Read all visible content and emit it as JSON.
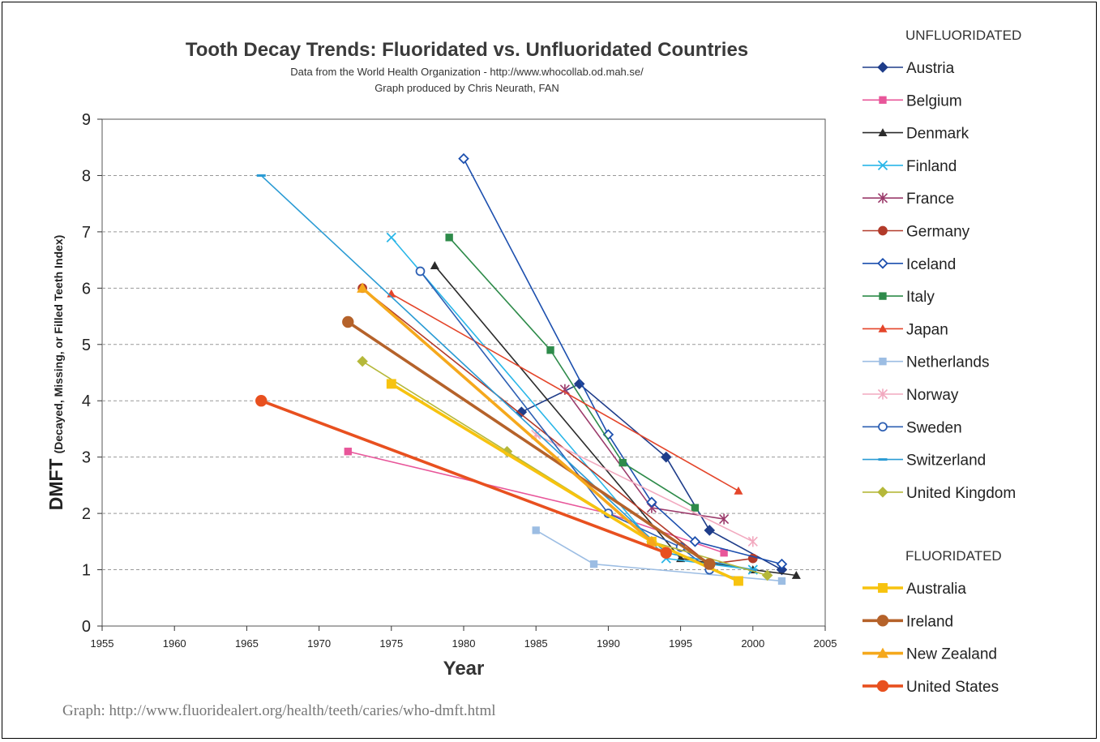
{
  "chart_data": {
    "type": "line",
    "title": "Tooth Decay Trends:  Fluoridated vs. Unfluoridated Countries",
    "subtitle_lines": [
      "Data from the World Health Organization - http://www.whocollab.od.mah.se/",
      "Graph produced by Chris Neurath, FAN"
    ],
    "xlabel": "Year",
    "ylabel_main": "DMFT",
    "ylabel_sub": "(Decayed, Missing, or Filled Teeth Index)",
    "xlim": [
      1955,
      2005
    ],
    "ylim": [
      0,
      9
    ],
    "x_ticks": [
      "1955",
      "1960",
      "1965",
      "1970",
      "1975",
      "1980",
      "1985",
      "1990",
      "1995",
      "2000",
      "2005"
    ],
    "y_ticks": [
      "0",
      "1",
      "2",
      "3",
      "4",
      "5",
      "6",
      "7",
      "8",
      "9"
    ],
    "grid": "horizontal dashed",
    "legend_position": "right",
    "legend_groups": [
      {
        "heading": "UNFLUORIDATED",
        "series_start": 0,
        "series_end": 14
      },
      {
        "heading": "FLUORIDATED",
        "series_start": 14,
        "series_end": 18
      }
    ],
    "series": [
      {
        "name": "Austria",
        "group": "unfluoridated",
        "color": "#1f3d8a",
        "marker": "diamond",
        "points": [
          [
            1984,
            3.8
          ],
          [
            1988,
            4.3
          ],
          [
            1994,
            3.0
          ],
          [
            1997,
            1.7
          ],
          [
            2002,
            1.0
          ]
        ]
      },
      {
        "name": "Belgium",
        "group": "unfluoridated",
        "color": "#e8569a",
        "marker": "square",
        "points": [
          [
            1972,
            3.1
          ],
          [
            1990,
            2.0
          ],
          [
            1998,
            1.3
          ]
        ]
      },
      {
        "name": "Denmark",
        "group": "unfluoridated",
        "color": "#2b2b2b",
        "marker": "triangle",
        "points": [
          [
            1978,
            6.4
          ],
          [
            1995,
            1.2
          ],
          [
            2000,
            1.0
          ],
          [
            2003,
            0.9
          ]
        ]
      },
      {
        "name": "Finland",
        "group": "unfluoridated",
        "color": "#29b6e8",
        "marker": "x",
        "points": [
          [
            1975,
            6.9
          ],
          [
            1994,
            1.2
          ],
          [
            2000,
            1.0
          ]
        ]
      },
      {
        "name": "France",
        "group": "unfluoridated",
        "color": "#9b3b6b",
        "marker": "star",
        "points": [
          [
            1987,
            4.2
          ],
          [
            1993,
            2.1
          ],
          [
            1998,
            1.9
          ]
        ]
      },
      {
        "name": "Germany",
        "group": "unfluoridated",
        "color": "#b23a2a",
        "marker": "circle",
        "points": [
          [
            1973,
            6.0
          ],
          [
            1997,
            1.1
          ],
          [
            2000,
            1.2
          ]
        ]
      },
      {
        "name": "Iceland",
        "group": "unfluoridated",
        "color": "#1c4fae",
        "marker": "diamond-open",
        "points": [
          [
            1980,
            8.3
          ],
          [
            1990,
            3.4
          ],
          [
            1993,
            2.2
          ],
          [
            1996,
            1.5
          ],
          [
            2002,
            1.1
          ]
        ]
      },
      {
        "name": "Italy",
        "group": "unfluoridated",
        "color": "#2e8b4a",
        "marker": "square",
        "points": [
          [
            1979,
            6.9
          ],
          [
            1986,
            4.9
          ],
          [
            1991,
            2.9
          ],
          [
            1996,
            2.1
          ]
        ]
      },
      {
        "name": "Japan",
        "group": "unfluoridated",
        "color": "#e4452a",
        "marker": "triangle",
        "points": [
          [
            1975,
            5.9
          ],
          [
            1999,
            2.4
          ]
        ]
      },
      {
        "name": "Netherlands",
        "group": "unfluoridated",
        "color": "#9cbde3",
        "marker": "square",
        "points": [
          [
            1985,
            1.7
          ],
          [
            1989,
            1.1
          ],
          [
            2002,
            0.8
          ]
        ]
      },
      {
        "name": "Norway",
        "group": "unfluoridated",
        "color": "#f2a9bf",
        "marker": "star",
        "points": [
          [
            1985,
            3.4
          ],
          [
            2000,
            1.5
          ]
        ]
      },
      {
        "name": "Sweden",
        "group": "unfluoridated",
        "color": "#2d5fb3",
        "marker": "circle-open",
        "points": [
          [
            1977,
            6.3
          ],
          [
            1990,
            2.0
          ],
          [
            1995,
            1.4
          ],
          [
            1997,
            1.0
          ]
        ]
      },
      {
        "name": "Switzerland",
        "group": "unfluoridated",
        "color": "#2a9bd4",
        "marker": "dash",
        "points": [
          [
            1966,
            8.0
          ],
          [
            1994,
            1.3
          ],
          [
            2000,
            1.0
          ]
        ]
      },
      {
        "name": "United Kingdom",
        "group": "unfluoridated",
        "color": "#b5b83a",
        "marker": "diamond",
        "points": [
          [
            1973,
            4.7
          ],
          [
            1983,
            3.1
          ],
          [
            1993,
            1.5
          ],
          [
            2001,
            0.9
          ]
        ]
      },
      {
        "name": "Australia",
        "group": "fluoridated",
        "color": "#f7c30f",
        "marker": "square",
        "points": [
          [
            1975,
            4.3
          ],
          [
            1993,
            1.5
          ],
          [
            1999,
            0.8
          ]
        ]
      },
      {
        "name": "Ireland",
        "group": "fluoridated",
        "color": "#b5622a",
        "marker": "circle",
        "points": [
          [
            1972,
            5.4
          ],
          [
            1997,
            1.1
          ]
        ]
      },
      {
        "name": "New Zealand",
        "group": "fluoridated",
        "color": "#f5a81c",
        "marker": "triangle",
        "points": [
          [
            1973,
            6.0
          ],
          [
            1993,
            1.5
          ]
        ]
      },
      {
        "name": "United States",
        "group": "fluoridated",
        "color": "#e8501f",
        "marker": "circle",
        "points": [
          [
            1966,
            4.0
          ],
          [
            1994,
            1.3
          ]
        ]
      }
    ]
  },
  "footer": {
    "caption": "Graph: http://www.fluoridealert.org/health/teeth/caries/who-dmft.html"
  }
}
